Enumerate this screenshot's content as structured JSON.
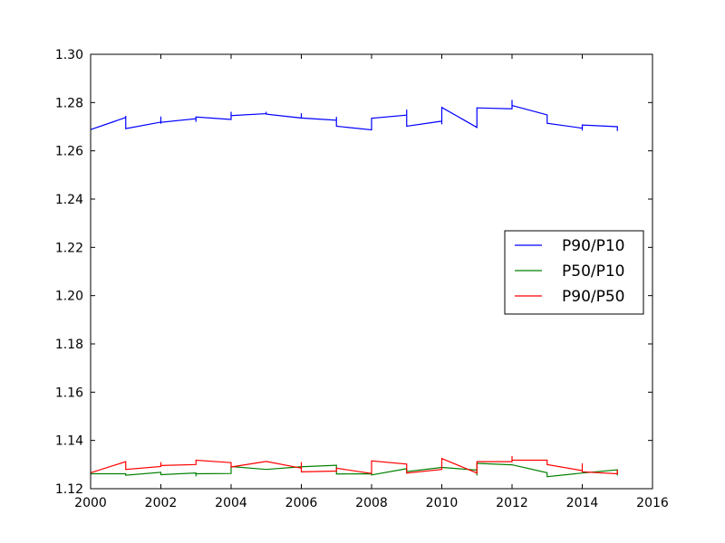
{
  "chart_data": {
    "type": "line",
    "title": "",
    "xlabel": "",
    "ylabel": "",
    "xlim": [
      2000,
      2016
    ],
    "ylim": [
      1.12,
      1.3
    ],
    "xticks": [
      "2000",
      "2002",
      "2004",
      "2006",
      "2008",
      "2010",
      "2012",
      "2014",
      "2016"
    ],
    "yticks": [
      "1.12",
      "1.14",
      "1.16",
      "1.18",
      "1.20",
      "1.22",
      "1.24",
      "1.26",
      "1.28",
      "1.30"
    ],
    "legend_position": "center-right",
    "grid": false,
    "series": [
      {
        "name": "P90/P10",
        "color": "#0000ff",
        "points": [
          [
            2000.0,
            1.2688
          ],
          [
            2001.0,
            1.2738
          ],
          [
            2001.0,
            1.2745
          ],
          [
            2001.0,
            1.2692
          ],
          [
            2002.0,
            1.2719
          ],
          [
            2002.0,
            1.2742
          ],
          [
            2002.0,
            1.2712
          ],
          [
            2002.0,
            1.2718
          ],
          [
            2003.0,
            1.2733
          ],
          [
            2003.0,
            1.272
          ],
          [
            2003.0,
            1.274
          ],
          [
            2004.0,
            1.273
          ],
          [
            2004.0,
            1.2762
          ],
          [
            2004.0,
            1.2746
          ],
          [
            2005.0,
            1.2754
          ],
          [
            2005.0,
            1.2762
          ],
          [
            2005.0,
            1.2752
          ],
          [
            2006.0,
            1.2736
          ],
          [
            2006.0,
            1.2756
          ],
          [
            2006.0,
            1.2736
          ],
          [
            2007.0,
            1.2727
          ],
          [
            2007.0,
            1.2741
          ],
          [
            2007.0,
            1.2702
          ],
          [
            2008.0,
            1.2687
          ],
          [
            2008.0,
            1.2735
          ],
          [
            2009.0,
            1.2748
          ],
          [
            2009.0,
            1.2771
          ],
          [
            2009.0,
            1.2702
          ],
          [
            2010.0,
            1.2723
          ],
          [
            2010.0,
            1.271
          ],
          [
            2010.0,
            1.278
          ],
          [
            2011.0,
            1.2697
          ],
          [
            2011.0,
            1.2778
          ],
          [
            2012.0,
            1.2774
          ],
          [
            2012.0,
            1.2811
          ],
          [
            2012.0,
            1.2788
          ],
          [
            2013.0,
            1.2749
          ],
          [
            2013.0,
            1.2714
          ],
          [
            2014.0,
            1.2694
          ],
          [
            2014.0,
            1.2684
          ],
          [
            2014.0,
            1.2707
          ],
          [
            2015.0,
            1.27
          ],
          [
            2015.0,
            1.2682
          ]
        ]
      },
      {
        "name": "P50/P10",
        "color": "#008000",
        "points": [
          [
            2000.0,
            1.1262
          ],
          [
            2001.0,
            1.1262
          ],
          [
            2001.0,
            1.1256
          ],
          [
            2002.0,
            1.1268
          ],
          [
            2002.0,
            1.1258
          ],
          [
            2003.0,
            1.1265
          ],
          [
            2003.0,
            1.1251
          ],
          [
            2003.0,
            1.1262
          ],
          [
            2004.0,
            1.1263
          ],
          [
            2004.0,
            1.1292
          ],
          [
            2005.0,
            1.128
          ],
          [
            2006.0,
            1.1291
          ],
          [
            2007.0,
            1.1297
          ],
          [
            2007.0,
            1.1261
          ],
          [
            2008.0,
            1.1262
          ],
          [
            2008.0,
            1.1257
          ],
          [
            2009.0,
            1.1283
          ],
          [
            2009.0,
            1.1271
          ],
          [
            2010.0,
            1.1288
          ],
          [
            2011.0,
            1.1277
          ],
          [
            2011.0,
            1.1255
          ],
          [
            2011.0,
            1.1305
          ],
          [
            2012.0,
            1.1299
          ],
          [
            2013.0,
            1.1266
          ],
          [
            2013.0,
            1.125
          ],
          [
            2014.0,
            1.1265
          ],
          [
            2015.0,
            1.1278
          ],
          [
            2015.0,
            1.1255
          ]
        ]
      },
      {
        "name": "P90/P50",
        "color": "#ff0000",
        "points": [
          [
            2000.0,
            1.1266
          ],
          [
            2001.0,
            1.1312
          ],
          [
            2001.0,
            1.129
          ],
          [
            2001.0,
            1.128
          ],
          [
            2002.0,
            1.1292
          ],
          [
            2002.0,
            1.131
          ],
          [
            2002.0,
            1.1296
          ],
          [
            2003.0,
            1.13
          ],
          [
            2003.0,
            1.1318
          ],
          [
            2004.0,
            1.1308
          ],
          [
            2004.0,
            1.129
          ],
          [
            2005.0,
            1.1313
          ],
          [
            2006.0,
            1.1285
          ],
          [
            2006.0,
            1.131
          ],
          [
            2006.0,
            1.127
          ],
          [
            2007.0,
            1.1273
          ],
          [
            2007.0,
            1.1285
          ],
          [
            2008.0,
            1.1263
          ],
          [
            2008.0,
            1.1315
          ],
          [
            2009.0,
            1.1302
          ],
          [
            2009.0,
            1.1265
          ],
          [
            2010.0,
            1.128
          ],
          [
            2010.0,
            1.1325
          ],
          [
            2011.0,
            1.1265
          ],
          [
            2011.0,
            1.1312
          ],
          [
            2012.0,
            1.1312
          ],
          [
            2012.0,
            1.1335
          ],
          [
            2012.0,
            1.1318
          ],
          [
            2013.0,
            1.1318
          ],
          [
            2013.0,
            1.13
          ],
          [
            2014.0,
            1.1275
          ],
          [
            2014.0,
            1.1305
          ],
          [
            2014.0,
            1.127
          ],
          [
            2015.0,
            1.1262
          ],
          [
            2015.0,
            1.1278
          ]
        ]
      }
    ]
  }
}
